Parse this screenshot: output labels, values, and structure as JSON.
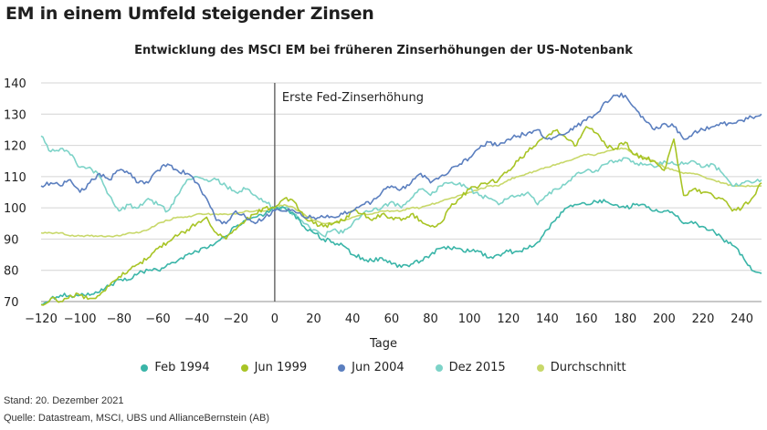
{
  "header": {
    "title": "EM in einem Umfeld steigender Zinsen"
  },
  "footer": {
    "stand": "Stand: 20. Dezember 2021",
    "quelle": "Quelle: Datastream, MSCI, UBS und AllianceBernstein (AB)"
  },
  "chart_data": {
    "type": "line",
    "title": "Entwicklung des MSCI EM bei früheren Zinserhöhungen der US-Notenbank",
    "xlabel": "Tage",
    "ylabel": "",
    "xlim": [
      -120,
      250
    ],
    "ylim": [
      70,
      140
    ],
    "grid": true,
    "legend_position": "bottom",
    "x_ticks": [
      -120,
      -100,
      -80,
      -60,
      -40,
      -20,
      0,
      20,
      40,
      60,
      80,
      100,
      120,
      140,
      160,
      180,
      200,
      220,
      240
    ],
    "x_tick_labels": [
      "−120",
      "−100",
      "−80",
      "−60",
      "−40",
      "−20",
      "0",
      "20",
      "40",
      "60",
      "80",
      "100",
      "120",
      "140",
      "160",
      "180",
      "200",
      "220",
      "240"
    ],
    "y_ticks": [
      70,
      80,
      90,
      100,
      110,
      120,
      130,
      140
    ],
    "y_tick_labels": [
      "70",
      "80",
      "90",
      "100",
      "110",
      "120",
      "130",
      "140"
    ],
    "annotations": [
      {
        "x": 0,
        "type": "vline",
        "text": "Erste Fed-Zinserhöhung"
      }
    ],
    "x": [
      -120,
      -115,
      -110,
      -105,
      -100,
      -95,
      -90,
      -85,
      -80,
      -75,
      -70,
      -65,
      -60,
      -55,
      -50,
      -45,
      -40,
      -35,
      -30,
      -25,
      -20,
      -15,
      -10,
      -5,
      0,
      5,
      10,
      15,
      20,
      25,
      30,
      35,
      40,
      45,
      50,
      55,
      60,
      65,
      70,
      75,
      80,
      85,
      90,
      95,
      100,
      105,
      110,
      115,
      120,
      125,
      130,
      135,
      140,
      145,
      150,
      155,
      160,
      165,
      170,
      175,
      180,
      185,
      190,
      195,
      200,
      205,
      210,
      215,
      220,
      225,
      230,
      235,
      240,
      245,
      250
    ],
    "series": [
      {
        "name": "Feb 1994",
        "color": "#3ab5a8",
        "values": [
          69,
          71,
          72,
          72,
          72,
          72,
          73,
          75,
          77,
          77,
          79,
          80,
          80,
          82,
          83,
          85,
          86,
          87,
          89,
          91,
          94,
          96,
          97,
          98,
          100,
          100,
          98,
          94,
          92,
          90,
          89,
          88,
          85,
          84,
          83,
          84,
          82,
          81,
          82,
          83,
          85,
          87,
          87,
          87,
          86,
          86,
          84,
          85,
          86,
          86,
          87,
          89,
          93,
          97,
          100,
          101,
          101,
          102,
          102,
          101,
          100,
          101,
          101,
          99,
          99,
          98,
          95,
          95,
          94,
          93,
          90,
          88,
          85,
          80,
          79
        ]
      },
      {
        "name": "Jun 1999",
        "color": "#a8c425",
        "values": [
          69,
          71,
          70,
          72,
          72,
          71,
          72,
          75,
          78,
          80,
          82,
          84,
          87,
          89,
          91,
          93,
          95,
          97,
          92,
          90,
          93,
          96,
          98,
          100,
          100,
          103,
          102,
          97,
          95,
          94,
          95,
          96,
          99,
          98,
          96,
          98,
          97,
          96,
          98,
          96,
          94,
          95,
          100,
          103,
          106,
          107,
          108,
          109,
          112,
          115,
          118,
          121,
          123,
          125,
          122,
          120,
          126,
          124,
          120,
          119,
          121,
          117,
          116,
          115,
          112,
          122,
          104,
          106,
          105,
          104,
          103,
          99,
          100,
          103,
          108
        ]
      },
      {
        "name": "Jun 2004",
        "color": "#5b7fbf",
        "values": [
          107,
          108,
          107,
          109,
          105,
          108,
          111,
          109,
          112,
          111,
          108,
          108,
          112,
          114,
          112,
          111,
          108,
          103,
          96,
          95,
          99,
          97,
          95,
          97,
          99,
          99,
          99,
          97,
          97,
          97,
          97,
          98,
          99,
          101,
          102,
          105,
          107,
          106,
          108,
          111,
          108,
          110,
          112,
          114,
          116,
          119,
          121,
          120,
          122,
          123,
          124,
          125,
          122,
          123,
          124,
          126,
          128,
          130,
          134,
          136,
          136,
          132,
          128,
          125,
          127,
          126,
          122,
          124,
          125,
          126,
          127,
          127,
          128,
          129,
          130
        ]
      },
      {
        "name": "Dez 2015",
        "color": "#7dd3c8",
        "values": [
          123,
          118,
          119,
          117,
          113,
          113,
          110,
          104,
          99,
          101,
          100,
          103,
          101,
          99,
          104,
          109,
          110,
          109,
          109,
          107,
          105,
          106,
          104,
          102,
          100,
          100,
          98,
          95,
          93,
          91,
          93,
          92,
          95,
          98,
          99,
          100,
          102,
          100,
          103,
          106,
          104,
          107,
          108,
          108,
          106,
          104,
          103,
          101,
          103,
          104,
          105,
          101,
          104,
          106,
          108,
          111,
          112,
          112,
          114,
          115,
          116,
          114,
          114,
          113,
          115,
          114,
          114,
          115,
          113,
          114,
          111,
          107,
          108,
          108,
          109
        ]
      },
      {
        "name": "Durchschnitt",
        "color": "#c8d86a",
        "values": [
          92,
          92,
          92,
          91,
          91,
          91,
          91,
          91,
          91,
          92,
          92,
          93,
          95,
          96,
          97,
          97,
          98,
          98,
          98,
          98,
          98,
          99,
          99,
          99,
          100,
          101,
          100,
          98,
          96,
          95,
          95,
          96,
          97,
          98,
          98,
          99,
          99,
          99,
          100,
          100,
          101,
          102,
          103,
          104,
          105,
          106,
          107,
          107,
          109,
          110,
          111,
          112,
          113,
          114,
          115,
          116,
          117,
          117,
          118,
          119,
          119,
          117,
          116,
          115,
          113,
          112,
          111,
          111,
          110,
          109,
          108,
          107,
          107,
          107,
          107
        ]
      }
    ]
  }
}
